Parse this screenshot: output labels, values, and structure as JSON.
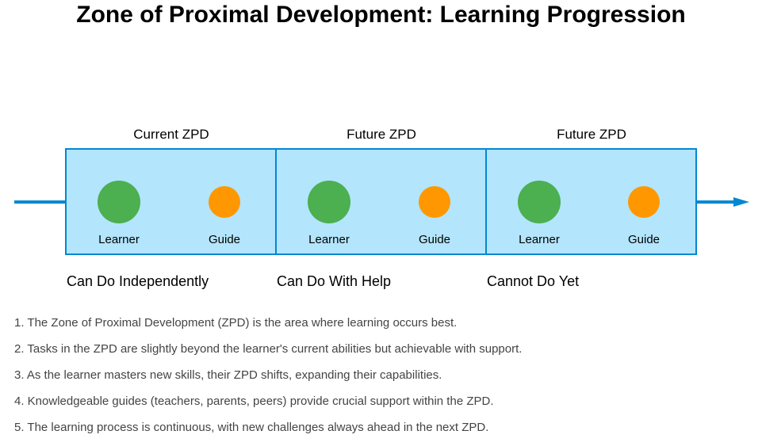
{
  "title": "Zone of Proximal Development: Learning Progression",
  "colors": {
    "zone_fill": "#b3e5fc",
    "zone_border": "#0288d1",
    "learner": "#4caf50",
    "guide": "#ff9800",
    "arrow": "#0288d1"
  },
  "zones": [
    {
      "title": "Current ZPD",
      "learner_label": "Learner",
      "guide_label": "Guide",
      "caption": "Can Do Independently"
    },
    {
      "title": "Future ZPD",
      "learner_label": "Learner",
      "guide_label": "Guide",
      "caption": "Can Do With Help"
    },
    {
      "title": "Future ZPD",
      "learner_label": "Learner",
      "guide_label": "Guide",
      "caption": "Cannot Do Yet"
    }
  ],
  "notes": [
    "1. The Zone of Proximal Development (ZPD) is the area where learning occurs best.",
    "2. Tasks in the ZPD are slightly beyond the learner's current abilities but achievable with support.",
    "3. As the learner masters new skills, their ZPD shifts, expanding their capabilities.",
    "4. Knowledgeable guides (teachers, parents, peers) provide crucial support within the ZPD.",
    "5. The learning process is continuous, with new challenges always ahead in the next ZPD."
  ]
}
